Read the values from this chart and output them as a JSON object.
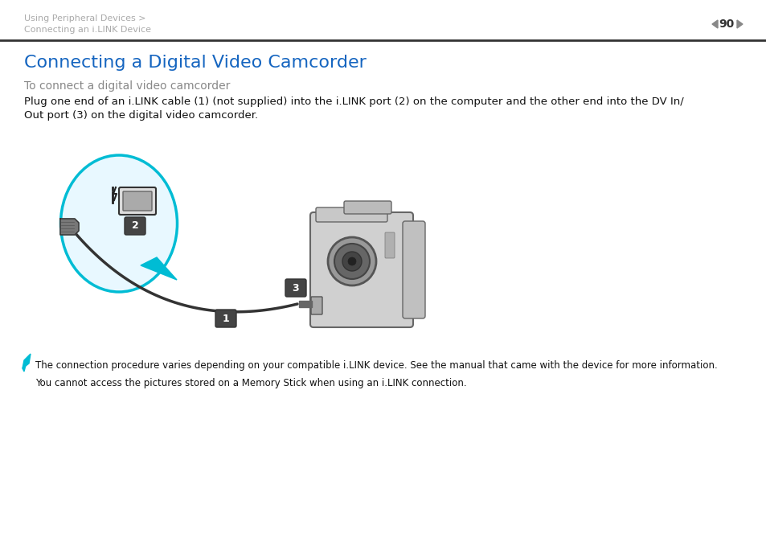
{
  "bg_color": "#ffffff",
  "header_text1": "Using Peripheral Devices >",
  "header_text2": "Connecting an i.LINK Device",
  "page_number": "90",
  "title": "Connecting a Digital Video Camcorder",
  "title_color": "#1565c0",
  "subtitle": "To connect a digital video camcorder",
  "subtitle_color": "#888888",
  "body_line1": "Plug one end of an i.LINK cable (1) (not supplied) into the i.LINK port (2) on the computer and the other end into the DV In/",
  "body_line2": "Out port (3) on the digital video camcorder.",
  "note_text1": "The connection procedure varies depending on your compatible i.LINK device. See the manual that came with the device for more information.",
  "note_text2": "You cannot access the pictures stored on a Memory Stick when using an i.LINK connection.",
  "header_color": "#aaaaaa",
  "line_color": "#333333",
  "arrow_color": "#00bcd4",
  "label_bg": "#444444",
  "label_fg": "#ffffff"
}
